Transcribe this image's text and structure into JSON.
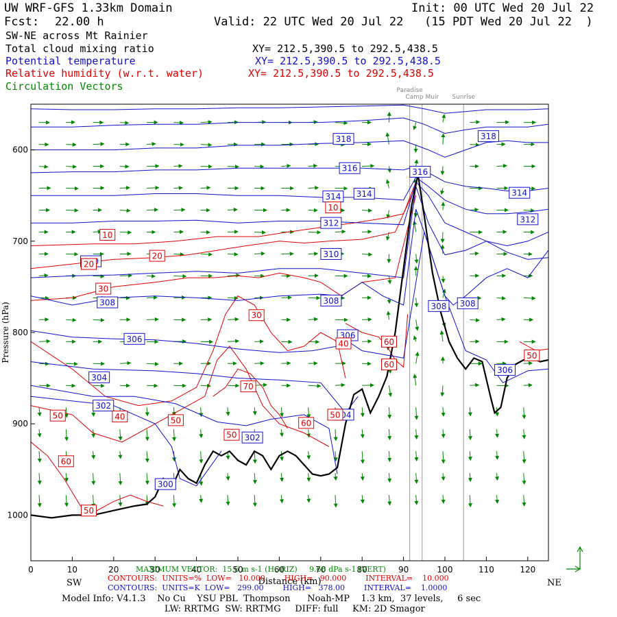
{
  "header": {
    "model_title": "UW WRF-GFS 1.33km Domain",
    "init": "Init: 00 UTC Wed 20 Jul 22",
    "fcst_label": "Fcst:",
    "fcst_value": "22.00 h",
    "valid": "Valid: 22 UTC Wed 20 Jul 22   (15 PDT Wed 20 Jul 22  )",
    "cross_section": "SW-NE across Mt Rainier",
    "field1": "Total cloud mixing ratio",
    "field1_xy": "XY= 212.5,390.5 to 292.5,438.5",
    "field2": "Potential temperature",
    "field2_xy": "XY= 212.5,390.5 to 292.5,438.5",
    "field3": "Relative humidity (w.r.t. water)",
    "field3_xy": "XY= 212.5,390.5 to 292.5,438.5",
    "field4": "Circulation Vectors"
  },
  "colors": {
    "theta": "#1010d0",
    "rh": "#e00000",
    "vectors": "#008800",
    "terrain": "#000000",
    "marker_lines": "#999999"
  },
  "footer": {
    "sw": "SW",
    "ne": "NE",
    "max_vector": "MAXIMUM VECTOR:  15.6 m s-1 (HORIZ)     9.68 dPa s-1 (VERT)",
    "rh_contours": "CONTOURS:  UNITS=%  LOW=   10.000        HIGH=   90.000        INTERVAL=    10.000",
    "theta_contours": "CONTOURS:  UNITS=K  LOW=   299.00        HIGH=   378.00        INTERVAL=    1.0000",
    "model_info": "Model Info: V4.1.3    No Cu    YSU PBL  Thompson      Noah-MP    1.3 km,  37 levels,     6 sec",
    "model_info2": "LW: RRTMG  SW: RRTMG     DIFF: full     KM: 2D Smagor"
  },
  "chart_data": {
    "type": "line",
    "title": "SW-NE across Mt Rainier",
    "xlabel": "Distance (km)",
    "ylabel": "Pressure (hPa)",
    "xlim": [
      0,
      125
    ],
    "ylim": [
      1050,
      550
    ],
    "y_reversed": true,
    "x_ticks": [
      0,
      10,
      20,
      30,
      40,
      50,
      60,
      70,
      80,
      90,
      100,
      110,
      120
    ],
    "y_ticks": [
      600,
      700,
      800,
      900,
      1000
    ],
    "y_tick_labels": [
      "600",
      "700",
      "800",
      "900",
      "1000"
    ],
    "reference_markers": [
      {
        "name": "Paradise",
        "x": 91.5
      },
      {
        "name": "Camp Muir",
        "x": 94.5
      },
      {
        "name": "Sunrise",
        "x": 104.5
      }
    ],
    "series": [
      {
        "name": "Terrain",
        "x": [
          0,
          5,
          10,
          15,
          20,
          25,
          28,
          30,
          32,
          34,
          36,
          38,
          40,
          42,
          44,
          46,
          48,
          50,
          52,
          54,
          56,
          58,
          60,
          62,
          64,
          66,
          68,
          70,
          72,
          74,
          76,
          78,
          80,
          82,
          84,
          86,
          88,
          90,
          92,
          93.5,
          95,
          97,
          99,
          101,
          103,
          105,
          107,
          109,
          111,
          112,
          113.5,
          115,
          117,
          119,
          121,
          123,
          125
        ],
        "y": [
          1000,
          1003,
          1000,
          1000,
          995,
          990,
          988,
          980,
          960,
          970,
          950,
          960,
          965,
          945,
          930,
          935,
          930,
          940,
          945,
          930,
          935,
          950,
          935,
          930,
          935,
          945,
          955,
          957,
          955,
          948,
          900,
          868,
          862,
          888,
          870,
          848,
          800,
          730,
          660,
          627,
          672,
          735,
          778,
          810,
          828,
          840,
          828,
          832,
          870,
          888,
          882,
          850,
          835,
          830,
          828,
          832,
          830
        ]
      },
      {
        "name": "Theta 300 K",
        "x": [
          0,
          20,
          30,
          34,
          36,
          40,
          46
        ],
        "y": [
          870,
          880,
          900,
          925,
          960,
          968,
          930
        ]
      },
      {
        "name": "Theta 302 K",
        "x": [
          0,
          15,
          25,
          35,
          45,
          52,
          58,
          66,
          72,
          74
        ],
        "y": [
          858,
          870,
          870,
          878,
          898,
          902,
          895,
          890,
          905,
          955
        ]
      },
      {
        "name": "Theta 304 K",
        "x": [
          0,
          15,
          30,
          40,
          50,
          60,
          70,
          76,
          79
        ],
        "y": [
          832,
          840,
          842,
          845,
          850,
          852,
          855,
          888,
          870
        ]
      },
      {
        "name": "Theta 306 K",
        "x": [
          0,
          10,
          20,
          30,
          40,
          50,
          60,
          68,
          74,
          76,
          80,
          90,
          95,
          100,
          105,
          110,
          114,
          120,
          125
        ],
        "y": [
          798,
          805,
          807,
          808,
          812,
          818,
          822,
          820,
          815,
          808,
          820,
          828,
          690,
          760,
          820,
          830,
          855,
          842,
          840
        ]
      },
      {
        "name": "Theta 308 K",
        "x": [
          0,
          10,
          20,
          30,
          40,
          50,
          60,
          70,
          75,
          80,
          85,
          90,
          93,
          95,
          100,
          102,
          105,
          110,
          115,
          120,
          125
        ],
        "y": [
          760,
          770,
          762,
          760,
          762,
          765,
          760,
          758,
          760,
          745,
          760,
          770,
          665,
          690,
          760,
          770,
          760,
          740,
          730,
          740,
          710
        ]
      },
      {
        "name": "Theta 310 K",
        "x": [
          0,
          10,
          20,
          30,
          40,
          50,
          60,
          70,
          80,
          90,
          93,
          96,
          100,
          105,
          110,
          115,
          120,
          125
        ],
        "y": [
          740,
          738,
          737,
          735,
          733,
          735,
          730,
          730,
          735,
          740,
          640,
          680,
          715,
          710,
          700,
          712,
          720,
          718
        ]
      },
      {
        "name": "Theta 312 K",
        "x": [
          0,
          10,
          20,
          30,
          40,
          50,
          60,
          70,
          80,
          90,
          93,
          96,
          100,
          105,
          110,
          115,
          120,
          125
        ],
        "y": [
          680,
          680,
          678,
          678,
          677,
          680,
          678,
          678,
          680,
          682,
          635,
          650,
          680,
          690,
          700,
          705,
          700,
          690
        ]
      },
      {
        "name": "Theta 314 K",
        "x": [
          0,
          10,
          20,
          30,
          40,
          50,
          60,
          70,
          80,
          90,
          93,
          96,
          100,
          105,
          110,
          115,
          120,
          125
        ],
        "y": [
          650,
          650,
          650,
          648,
          648,
          650,
          650,
          652,
          652,
          655,
          630,
          640,
          655,
          665,
          670,
          670,
          668,
          665
        ]
      },
      {
        "name": "Theta 316 K",
        "x": [
          0,
          10,
          20,
          30,
          40,
          50,
          60,
          70,
          80,
          90,
          93,
          96,
          100,
          105,
          110,
          115,
          120,
          125
        ],
        "y": [
          625,
          624,
          624,
          622,
          622,
          620,
          620,
          620,
          620,
          622,
          618,
          625,
          635,
          640,
          642,
          645,
          645,
          642
        ]
      },
      {
        "name": "Theta 318 K",
        "x": [
          0,
          10,
          20,
          30,
          40,
          50,
          60,
          70,
          80,
          90,
          93,
          96,
          100,
          105,
          110,
          115,
          120,
          125
        ],
        "y": [
          600,
          600,
          600,
          598,
          598,
          595,
          595,
          593,
          592,
          590,
          595,
          600,
          608,
          600,
          592,
          590,
          592,
          592
        ]
      },
      {
        "name": "Theta 320 K",
        "x": [
          0,
          10,
          20,
          30,
          40,
          50,
          60,
          70,
          80,
          90,
          95,
          100,
          105,
          110,
          115,
          120,
          125
        ],
        "y": [
          575,
          575,
          573,
          572,
          572,
          570,
          570,
          570,
          568,
          565,
          572,
          582,
          578,
          575,
          575,
          575,
          572
        ]
      },
      {
        "name": "Theta 322 K",
        "x": [
          0,
          10,
          20,
          30,
          40,
          50,
          60,
          70,
          80,
          90,
          95,
          100,
          105,
          110,
          115,
          120,
          125
        ],
        "y": [
          555,
          556,
          556,
          555,
          555,
          554,
          554,
          553,
          552,
          551,
          555,
          560,
          558,
          556,
          556,
          556,
          555
        ]
      },
      {
        "name": "RH 10 %",
        "x": [
          0,
          15,
          25,
          35,
          45,
          55,
          62,
          70,
          78,
          85,
          90,
          93
        ],
        "y": [
          705,
          703,
          703,
          700,
          695,
          695,
          690,
          685,
          680,
          675,
          670,
          635
        ]
      },
      {
        "name": "RH 20 %",
        "x": [
          0,
          10,
          20,
          30,
          38,
          45,
          52,
          60,
          66,
          72,
          80,
          88,
          93
        ],
        "y": [
          730,
          725,
          720,
          718,
          715,
          710,
          705,
          700,
          702,
          700,
          698,
          690,
          640
        ]
      },
      {
        "name": "RH 30 %",
        "x": [
          0,
          10,
          20,
          30,
          38,
          44,
          50,
          55,
          60,
          66,
          70,
          75,
          80,
          88,
          93
        ],
        "y": [
          765,
          762,
          750,
          745,
          740,
          740,
          738,
          740,
          735,
          740,
          745,
          760,
          745,
          740,
          650
        ]
      },
      {
        "name": "RH 40 %",
        "x": [
          0,
          10,
          18,
          26,
          34,
          40,
          44,
          47,
          50,
          54,
          58,
          62,
          66,
          70,
          74,
          76
        ],
        "y": [
          810,
          840,
          870,
          880,
          875,
          860,
          820,
          780,
          760,
          770,
          800,
          820,
          815,
          800,
          810,
          850
        ]
      },
      {
        "name": "RH 50 %",
        "x": [
          0,
          5,
          10,
          15,
          22,
          28,
          34,
          38,
          42,
          45,
          48,
          52,
          56,
          60,
          66,
          72
        ],
        "y": [
          880,
          885,
          890,
          910,
          920,
          905,
          890,
          880,
          870,
          830,
          815,
          840,
          880,
          900,
          910,
          925
        ]
      },
      {
        "name": "RH 60 %",
        "x": [
          0,
          4,
          8,
          12,
          16,
          20,
          24,
          28,
          32
        ],
        "y": [
          920,
          935,
          960,
          990,
          995,
          985,
          978,
          985,
          990
        ]
      },
      {
        "name": "RH 70 %",
        "x": [
          44,
          47,
          50,
          53,
          56,
          58,
          60,
          62
        ],
        "y": [
          870,
          860,
          840,
          845,
          860,
          880,
          890,
          905
        ]
      },
      {
        "name": "RH 60 % (east)",
        "x": [
          76,
          80,
          84,
          86,
          88,
          90,
          91
        ],
        "y": [
          790,
          800,
          805,
          815,
          830,
          838,
          780
        ]
      },
      {
        "name": "RH 50 % (east)",
        "x": [
          118,
          120,
          122,
          125
        ],
        "y": [
          810,
          815,
          820,
          818
        ]
      }
    ],
    "contour_labels": [
      {
        "text": "318",
        "field": "theta",
        "x": 75.5,
        "y": 588
      },
      {
        "text": "316",
        "field": "theta",
        "x": 77,
        "y": 620
      },
      {
        "text": "314",
        "field": "theta",
        "x": 73,
        "y": 651
      },
      {
        "text": "314",
        "field": "theta",
        "x": 80.5,
        "y": 648
      },
      {
        "text": "312",
        "field": "theta",
        "x": 72.5,
        "y": 680
      },
      {
        "text": "310",
        "field": "theta",
        "x": 72.5,
        "y": 714
      },
      {
        "text": "308",
        "field": "theta",
        "x": 72.5,
        "y": 765
      },
      {
        "text": "308",
        "field": "theta",
        "x": 18.5,
        "y": 767
      },
      {
        "text": "306",
        "field": "theta",
        "x": 25,
        "y": 807
      },
      {
        "text": "306",
        "field": "theta",
        "x": 76.5,
        "y": 803
      },
      {
        "text": "304",
        "field": "theta",
        "x": 16.5,
        "y": 849
      },
      {
        "text": "302",
        "field": "theta",
        "x": 17.5,
        "y": 880
      },
      {
        "text": "302",
        "field": "theta",
        "x": 53.5,
        "y": 915
      },
      {
        "text": "300",
        "field": "theta",
        "x": 32.5,
        "y": 966
      },
      {
        "text": "304",
        "field": "theta",
        "x": 75.5,
        "y": 890
      },
      {
        "text": "310",
        "field": "theta",
        "x": 14.5,
        "y": 722
      },
      {
        "text": "318",
        "field": "theta",
        "x": 110.5,
        "y": 585
      },
      {
        "text": "314",
        "field": "theta",
        "x": 118,
        "y": 647
      },
      {
        "text": "312",
        "field": "theta",
        "x": 120,
        "y": 676
      },
      {
        "text": "308",
        "field": "theta",
        "x": 98.5,
        "y": 771
      },
      {
        "text": "308",
        "field": "theta",
        "x": 105.5,
        "y": 768
      },
      {
        "text": "306",
        "field": "theta",
        "x": 114.5,
        "y": 841
      },
      {
        "text": "316",
        "field": "theta",
        "x": 94,
        "y": 624
      },
      {
        "text": "10",
        "field": "rh",
        "x": 18.5,
        "y": 693
      },
      {
        "text": "10",
        "field": "rh",
        "x": 73,
        "y": 663
      },
      {
        "text": "20",
        "field": "rh",
        "x": 30.5,
        "y": 716
      },
      {
        "text": "20",
        "field": "rh",
        "x": 14,
        "y": 725
      },
      {
        "text": "30",
        "field": "rh",
        "x": 17.5,
        "y": 752
      },
      {
        "text": "30",
        "field": "rh",
        "x": 54.5,
        "y": 781
      },
      {
        "text": "40",
        "field": "rh",
        "x": 21.5,
        "y": 892
      },
      {
        "text": "40",
        "field": "rh",
        "x": 75.5,
        "y": 812
      },
      {
        "text": "50",
        "field": "rh",
        "x": 6.5,
        "y": 891
      },
      {
        "text": "50",
        "field": "rh",
        "x": 35,
        "y": 896
      },
      {
        "text": "50",
        "field": "rh",
        "x": 48.5,
        "y": 912
      },
      {
        "text": "50",
        "field": "rh",
        "x": 14,
        "y": 995
      },
      {
        "text": "50",
        "field": "rh",
        "x": 121,
        "y": 825
      },
      {
        "text": "50",
        "field": "rh",
        "x": 73.5,
        "y": 890
      },
      {
        "text": "60",
        "field": "rh",
        "x": 8.5,
        "y": 941
      },
      {
        "text": "60",
        "field": "rh",
        "x": 66.5,
        "y": 899
      },
      {
        "text": "60",
        "field": "rh",
        "x": 86.5,
        "y": 810
      },
      {
        "text": "60",
        "field": "rh",
        "x": 86.5,
        "y": 835
      },
      {
        "text": "70",
        "field": "rh",
        "x": 52.5,
        "y": 859
      }
    ],
    "legend_vector": {
      "x": 123,
      "y": "+",
      "note": "reference arrows"
    }
  }
}
